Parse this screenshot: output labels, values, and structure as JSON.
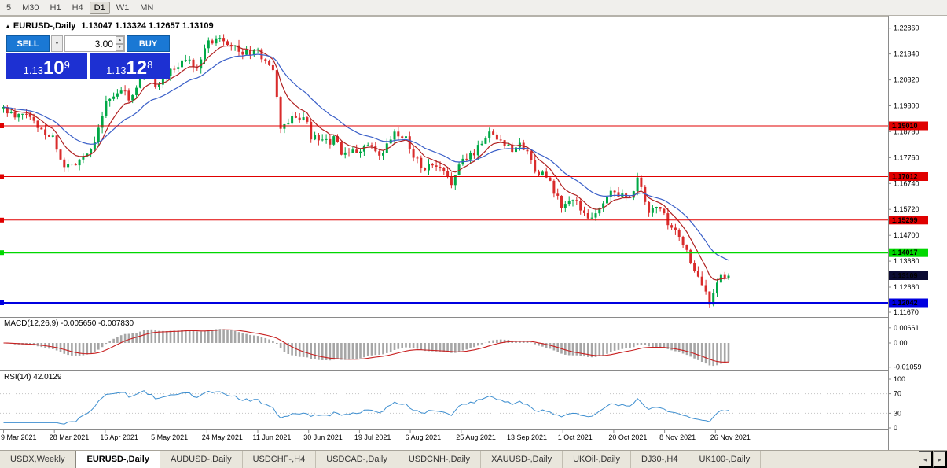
{
  "toolbar": {
    "timeframes": [
      "5",
      "M30",
      "H1",
      "H4",
      "D1",
      "W1",
      "MN"
    ]
  },
  "chart": {
    "collapse_icon": "▲",
    "title": "EURUSD-,Daily",
    "ohlc_text": "1.13047 1.13324 1.12657 1.13109"
  },
  "trade_panel": {
    "sell_label": "SELL",
    "buy_label": "BUY",
    "volume": "3.00",
    "dropdown_icon": "▼",
    "spinner_up_icon": "▴",
    "spinner_down_icon": "▾",
    "sell_price_big": "1.13",
    "sell_price_pips": "10",
    "sell_price_sup": "9",
    "buy_price_big": "1.13",
    "buy_price_pips": "12",
    "buy_price_sup": "8"
  },
  "indicators": {
    "macd_label": "MACD(12,26,9) -0.005650 -0.007830",
    "rsi_label": "RSI(14) 42.0129"
  },
  "tabs": {
    "items": [
      "USDX,Weekly",
      "EURUSD-,Daily",
      "AUDUSD-,Daily",
      "USDCHF-,H4",
      "USDCAD-,Daily",
      "USDCNH-,Daily",
      "XAUUSD-,Daily",
      "UKOil-,Daily",
      "DJ30-,H4",
      "UK100-,Daily"
    ],
    "active_index": 1,
    "scroll_left_icon": "◄",
    "scroll_right_icon": "►"
  },
  "chart_data": {
    "type": "candlestick",
    "symbol": "EURUSD-",
    "period": "Daily",
    "ohlc": {
      "open": 1.13047,
      "high": 1.13324,
      "low": 1.12657,
      "close": 1.13109
    },
    "bid": 1.13109,
    "ask": 1.13128,
    "current_price": 1.13109,
    "y_axis_ticks": [
      1.2286,
      1.2184,
      1.2082,
      1.198,
      1.1878,
      1.1776,
      1.1674,
      1.1572,
      1.147,
      1.1368,
      1.1266,
      1.1167
    ],
    "x_axis_labels": [
      "9 Mar 2021",
      "28 Mar 2021",
      "16 Apr 2021",
      "5 May 2021",
      "24 May 2021",
      "11 Jun 2021",
      "30 Jun 2021",
      "19 Jul 2021",
      "6 Aug 2021",
      "25 Aug 2021",
      "13 Sep 2021",
      "1 Oct 2021",
      "20 Oct 2021",
      "8 Nov 2021",
      "26 Nov 2021"
    ],
    "horizontal_lines": [
      {
        "price": 1.1901,
        "color": "#e00000",
        "width": 1
      },
      {
        "price": 1.17012,
        "color": "#e00000",
        "width": 1
      },
      {
        "price": 1.15299,
        "color": "#e00000",
        "width": 1
      },
      {
        "price": 1.14017,
        "color": "#00d800",
        "width": 2
      },
      {
        "price": 1.12042,
        "color": "#0000e0",
        "width": 2
      }
    ],
    "candle_colors": {
      "up": "#00a846",
      "down": "#d92b2b"
    },
    "ma_lines": [
      {
        "period": 8,
        "type": "ema",
        "color": "#b02020"
      },
      {
        "period": 20,
        "type": "ema",
        "color": "#3a5fc8"
      }
    ],
    "macd": {
      "fast": 12,
      "slow": 26,
      "signal": 9,
      "value": -0.00565,
      "signal_value": -0.00783,
      "axis_ticks": [
        0.00661,
        0,
        -0.01059
      ],
      "histogram_color": "#a6a6a6",
      "signal_color": "#c82020"
    },
    "rsi": {
      "period": 14,
      "value": 42.0129,
      "axis_ticks": [
        100,
        70,
        30,
        0
      ],
      "levels": [
        70,
        30
      ],
      "line_color": "#3e8fd0"
    },
    "num_candles": 192,
    "price_path_keypoints": [
      [
        0,
        1.197
      ],
      [
        3,
        1.193
      ],
      [
        6,
        1.195
      ],
      [
        9,
        1.19
      ],
      [
        13,
        1.1855
      ],
      [
        16,
        1.1735
      ],
      [
        19,
        1.176
      ],
      [
        23,
        1.181
      ],
      [
        27,
        1.199
      ],
      [
        31,
        1.2035
      ],
      [
        34,
        1.201
      ],
      [
        37,
        1.2125
      ],
      [
        40,
        1.2065
      ],
      [
        44,
        1.211
      ],
      [
        48,
        1.2165
      ],
      [
        51,
        1.214
      ],
      [
        54,
        1.223
      ],
      [
        57,
        1.2255
      ],
      [
        60,
        1.2225
      ],
      [
        63,
        1.2185
      ],
      [
        66,
        1.2195
      ],
      [
        69,
        1.2165
      ],
      [
        71,
        1.211
      ],
      [
        73,
        1.1895
      ],
      [
        76,
        1.1925
      ],
      [
        79,
        1.194
      ],
      [
        81,
        1.186
      ],
      [
        84,
        1.183
      ],
      [
        87,
        1.1845
      ],
      [
        90,
        1.178
      ],
      [
        93,
        1.1805
      ],
      [
        96,
        1.1825
      ],
      [
        99,
        1.177
      ],
      [
        103,
        1.187
      ],
      [
        106,
        1.1845
      ],
      [
        110,
        1.174
      ],
      [
        114,
        1.1735
      ],
      [
        118,
        1.1685
      ],
      [
        121,
        1.176
      ],
      [
        124,
        1.18
      ],
      [
        128,
        1.188
      ],
      [
        131,
        1.1845
      ],
      [
        134,
        1.1815
      ],
      [
        137,
        1.182
      ],
      [
        140,
        1.1735
      ],
      [
        143,
        1.1695
      ],
      [
        147,
        1.1585
      ],
      [
        150,
        1.1605
      ],
      [
        153,
        1.1565
      ],
      [
        155,
        1.1535
      ],
      [
        158,
        1.1595
      ],
      [
        161,
        1.1655
      ],
      [
        164,
        1.1605
      ],
      [
        167,
        1.1685
      ],
      [
        170,
        1.1565
      ],
      [
        173,
        1.1575
      ],
      [
        176,
        1.1485
      ],
      [
        179,
        1.1445
      ],
      [
        182,
        1.1325
      ],
      [
        186,
        1.121
      ],
      [
        188,
        1.1295
      ],
      [
        191,
        1.13109
      ]
    ]
  }
}
